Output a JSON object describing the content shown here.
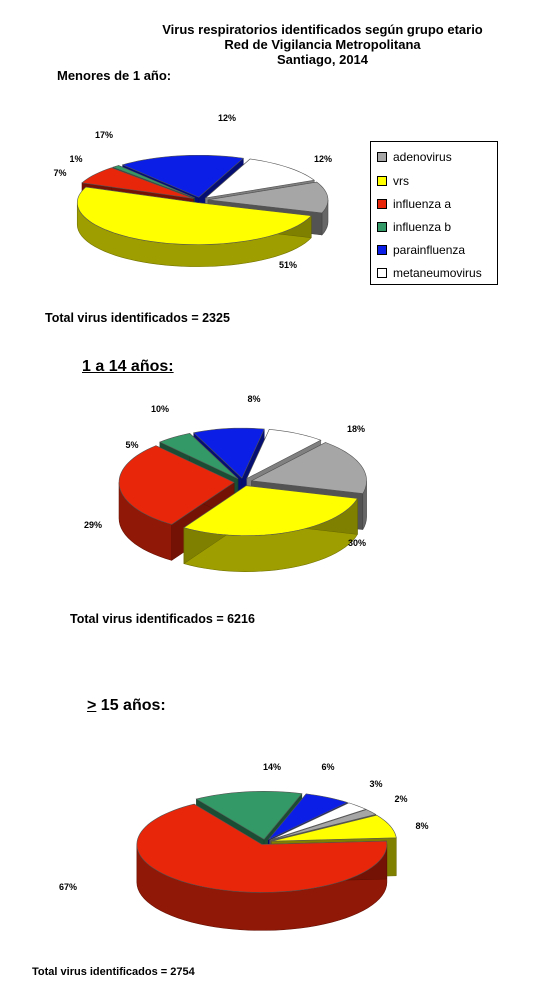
{
  "header": {
    "line1": "Virus respiratorios identificados según grupo etario",
    "line2": "Red de Vigilancia Metropolitana",
    "line3": "Santiago, 2014"
  },
  "sections": [
    {
      "title": "Menores de 1 año:",
      "total": "Total virus identificados = 2325"
    },
    {
      "title": "1 a 14 años:",
      "total": "Total  virus identificados = 6216"
    },
    {
      "title_prefix": "&gt;",
      "title": "15 años:",
      "total": "Total virus identificados = 2754"
    }
  ],
  "legend": {
    "items": [
      {
        "label": "adenovirus",
        "color": "#a6a6a6"
      },
      {
        "label": "vrs",
        "color": "#ffff00"
      },
      {
        "label": "influenza a",
        "color": "#e8260a"
      },
      {
        "label": "influenza b",
        "color": "#339966"
      },
      {
        "label": "parainfluenza",
        "color": "#0a1ee6"
      },
      {
        "label": "metaneumovirus",
        "color": "#ffffff"
      }
    ]
  },
  "chart_data": [
    {
      "type": "pie",
      "title": "Menores de 1 año:",
      "categories": [
        "adenovirus",
        "vrs",
        "influenza a",
        "influenza b",
        "parainfluenza",
        "metaneumovirus"
      ],
      "values": [
        12,
        51,
        7,
        1,
        17,
        12
      ],
      "labels": [
        "12%",
        "51%",
        "7%",
        "1%",
        "17%",
        "12%"
      ],
      "total": 2325
    },
    {
      "type": "pie",
      "title": "1 a 14 años:",
      "categories": [
        "adenovirus",
        "vrs",
        "influenza a",
        "influenza b",
        "parainfluenza",
        "metaneumovirus"
      ],
      "values": [
        18,
        30,
        29,
        5,
        10,
        8
      ],
      "labels": [
        "18%",
        "30%",
        "29%",
        "5%",
        "10%",
        "8%"
      ],
      "total": 6216
    },
    {
      "type": "pie",
      "title": "15 años:",
      "categories": [
        "adenovirus",
        "vrs",
        "influenza a",
        "influenza b",
        "parainfluenza",
        "metaneumovirus"
      ],
      "values": [
        2,
        8,
        67,
        14,
        6,
        3
      ],
      "labels": [
        "2%",
        "8%",
        "67%",
        "14%",
        "6%",
        "3%"
      ],
      "total": 2754
    }
  ]
}
